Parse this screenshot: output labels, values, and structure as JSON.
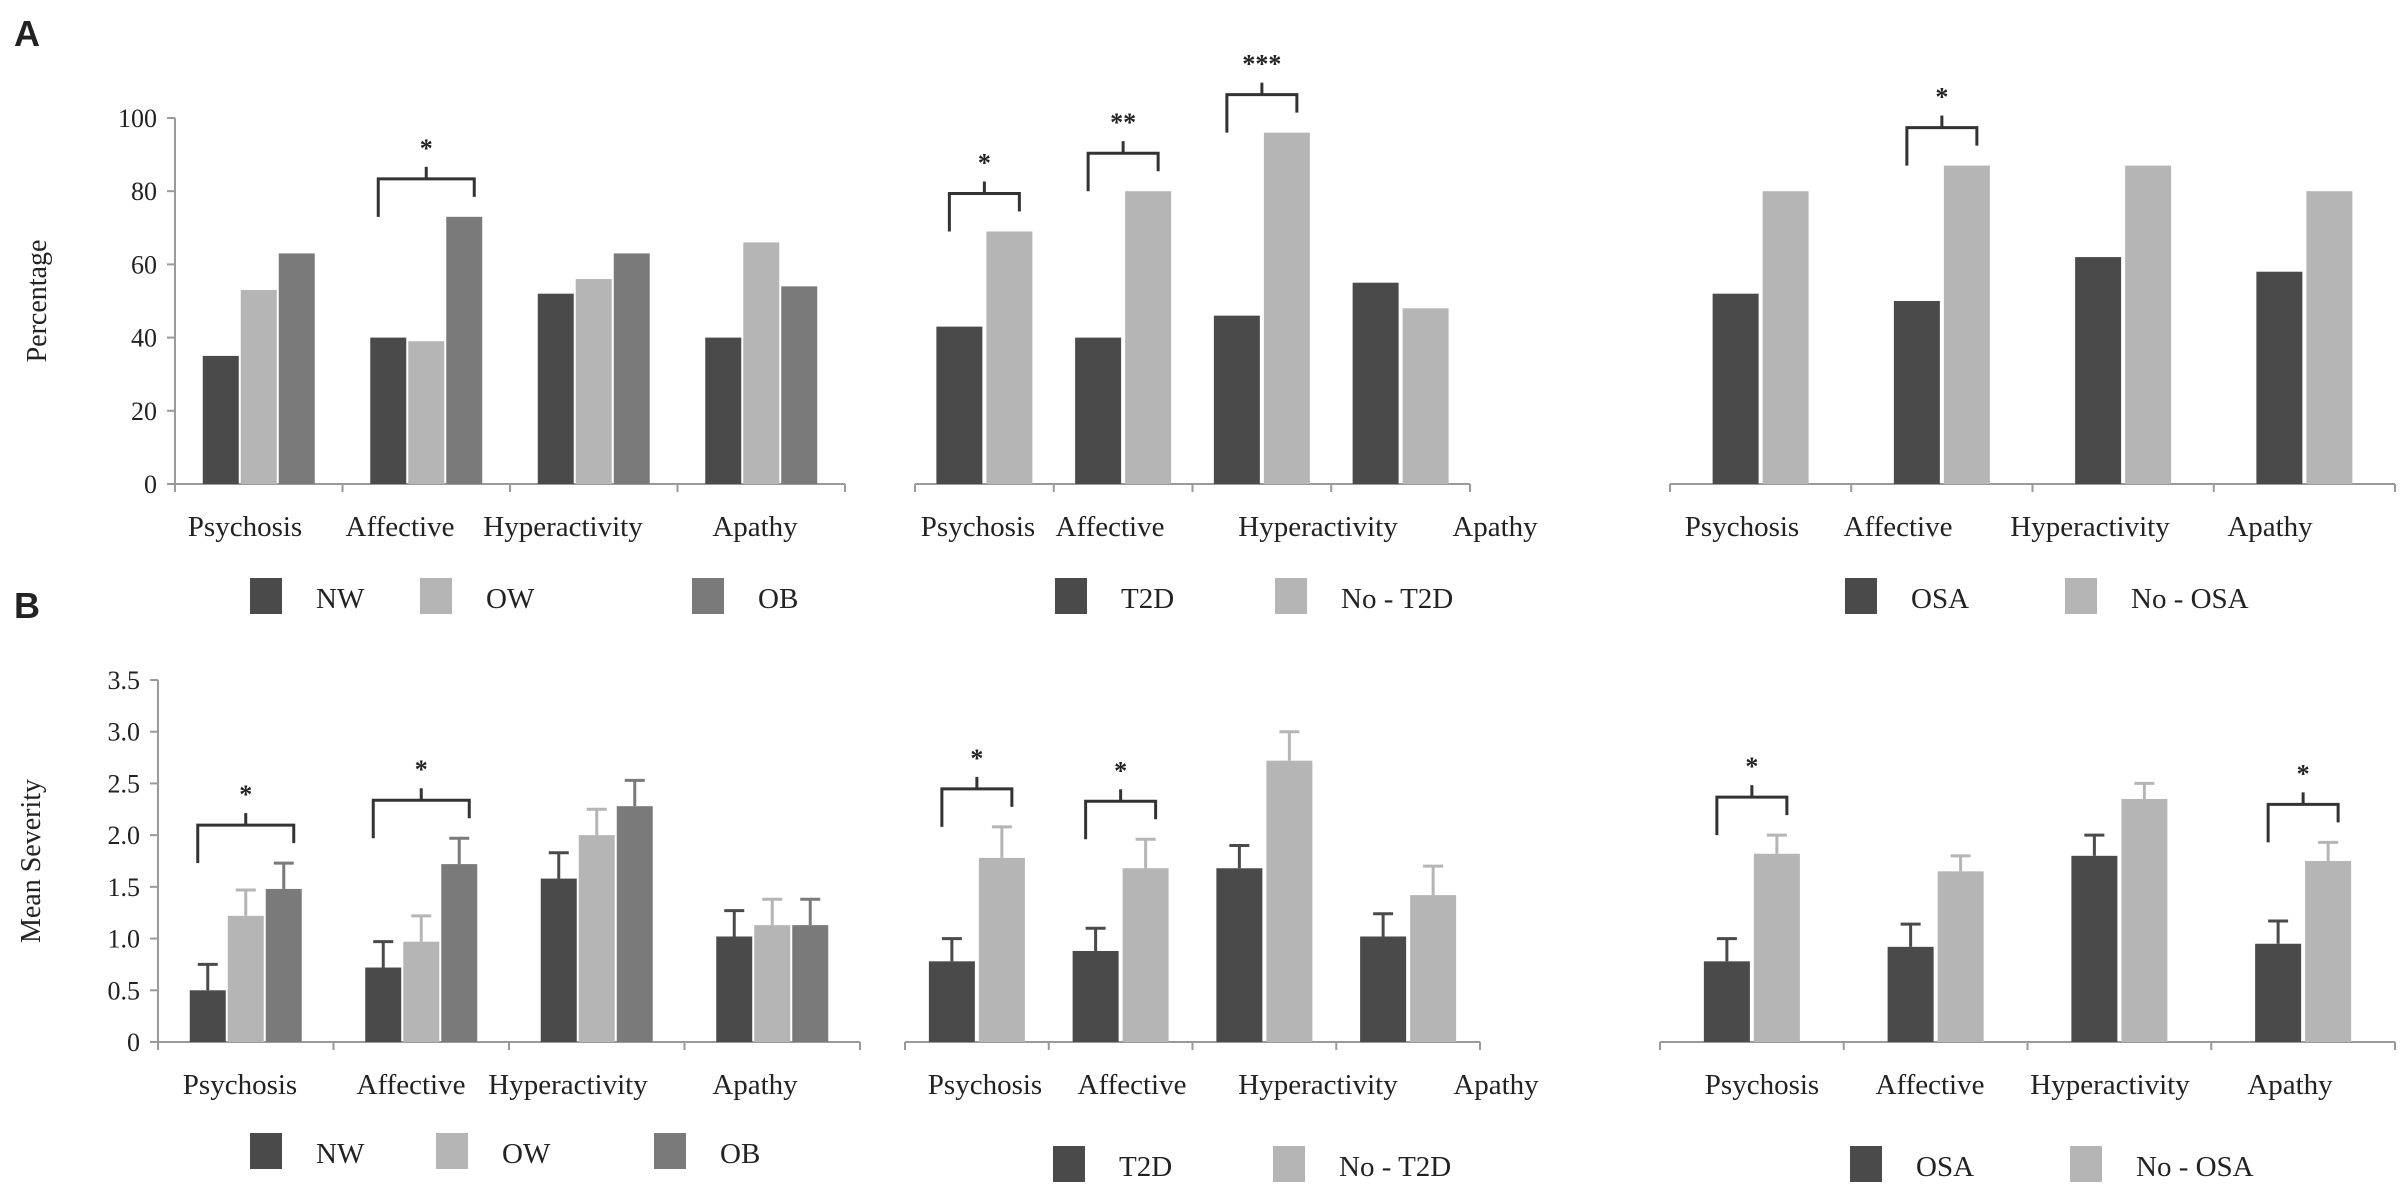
{
  "figure": {
    "panel_labels": [
      "A",
      "B"
    ]
  },
  "colors": {
    "NW": "#4a4a4a",
    "OW": "#b5b5b5",
    "OB": "#7a7a7a",
    "T2D": "#4a4a4a",
    "No - T2D": "#b5b5b5",
    "OSA": "#4a4a4a",
    "No - OSA": "#b5b5b5",
    "axis": "#9a9a9a"
  },
  "chart_data": [
    {
      "id": "A1",
      "type": "bar",
      "row": "A",
      "categories": [
        "Psychosis",
        "Affective",
        "Hyperactivity",
        "Apathy"
      ],
      "series": [
        {
          "name": "NW",
          "values": [
            35,
            40,
            52,
            40
          ]
        },
        {
          "name": "OW",
          "values": [
            53,
            39,
            56,
            66
          ]
        },
        {
          "name": "OB",
          "values": [
            63,
            73,
            63,
            54
          ]
        }
      ],
      "ylabel": "Percentage",
      "ylim": [
        0,
        100
      ],
      "yticks": [
        0,
        20,
        40,
        60,
        80,
        100
      ],
      "ytick_labels": [
        "0",
        "20",
        "40",
        "60",
        "80",
        "100"
      ],
      "significance": [
        {
          "category": "Affective",
          "from": "NW",
          "to": "OB",
          "label": "*"
        }
      ]
    },
    {
      "id": "A2",
      "type": "bar",
      "row": "A",
      "categories": [
        "Psychosis",
        "Affective",
        "Hyperactivity",
        "Apathy"
      ],
      "series": [
        {
          "name": "T2D",
          "values": [
            43,
            40,
            46,
            55
          ]
        },
        {
          "name": "No - T2D",
          "values": [
            69,
            80,
            96,
            48
          ]
        }
      ],
      "ylim": [
        0,
        100
      ],
      "significance": [
        {
          "category": "Psychosis",
          "from": "T2D",
          "to": "No - T2D",
          "label": "*"
        },
        {
          "category": "Affective",
          "from": "T2D",
          "to": "No - T2D",
          "label": "**"
        },
        {
          "category": "Hyperactivity",
          "from": "T2D",
          "to": "No - T2D",
          "label": "***"
        }
      ]
    },
    {
      "id": "A3",
      "type": "bar",
      "row": "A",
      "categories": [
        "Psychosis",
        "Affective",
        "Hyperactivity",
        "Apathy"
      ],
      "series": [
        {
          "name": "OSA",
          "values": [
            52,
            50,
            62,
            58
          ]
        },
        {
          "name": "No - OSA",
          "values": [
            80,
            87,
            87,
            80
          ]
        }
      ],
      "ylim": [
        0,
        100
      ],
      "significance": [
        {
          "category": "Affective",
          "from": "OSA",
          "to": "No - OSA",
          "label": "*"
        }
      ]
    },
    {
      "id": "B1",
      "type": "bar",
      "row": "B",
      "categories": [
        "Psychosis",
        "Affective",
        "Hyperactivity",
        "Apathy"
      ],
      "series": [
        {
          "name": "NW",
          "values": [
            0.5,
            0.72,
            1.58,
            1.02
          ],
          "errors": [
            0.25,
            0.25,
            0.25,
            0.25
          ]
        },
        {
          "name": "OW",
          "values": [
            1.22,
            0.97,
            2.0,
            1.13
          ],
          "errors": [
            0.25,
            0.25,
            0.25,
            0.25
          ]
        },
        {
          "name": "OB",
          "values": [
            1.48,
            1.72,
            2.28,
            1.13
          ],
          "errors": [
            0.25,
            0.25,
            0.25,
            0.25
          ]
        }
      ],
      "ylabel": "Mean Severity",
      "ylim": [
        0,
        3.5
      ],
      "yticks": [
        0,
        0.5,
        1,
        1.5,
        2,
        2.5,
        3,
        3.5
      ],
      "ytick_labels": [
        "0",
        "0.5",
        "1.0",
        "1.5",
        "2.0",
        "2.5",
        "3.0",
        "3.5"
      ],
      "significance": [
        {
          "category": "Psychosis",
          "from": "NW",
          "to": "OB",
          "label": "*"
        },
        {
          "category": "Affective",
          "from": "NW",
          "to": "OB",
          "label": "*"
        }
      ]
    },
    {
      "id": "B2",
      "type": "bar",
      "row": "B",
      "categories": [
        "Psychosis",
        "Affective",
        "Hyperactivity",
        "Apathy"
      ],
      "series": [
        {
          "name": "T2D",
          "values": [
            0.78,
            0.88,
            1.68,
            1.02
          ],
          "errors": [
            0.22,
            0.22,
            0.22,
            0.22
          ]
        },
        {
          "name": "No - T2D",
          "values": [
            1.78,
            1.68,
            2.72,
            1.42
          ],
          "errors": [
            0.3,
            0.28,
            0.28,
            0.28
          ]
        }
      ],
      "ylim": [
        0,
        3.5
      ],
      "significance": [
        {
          "category": "Psychosis",
          "from": "T2D",
          "to": "No - T2D",
          "label": "*"
        },
        {
          "category": "Affective",
          "from": "T2D",
          "to": "No - T2D",
          "label": "*"
        }
      ]
    },
    {
      "id": "B3",
      "type": "bar",
      "row": "B",
      "categories": [
        "Psychosis",
        "Affective",
        "Hyperactivity",
        "Apathy"
      ],
      "series": [
        {
          "name": "OSA",
          "values": [
            0.78,
            0.92,
            1.8,
            0.95
          ],
          "errors": [
            0.22,
            0.22,
            0.2,
            0.22
          ]
        },
        {
          "name": "No - OSA",
          "values": [
            1.82,
            1.65,
            2.35,
            1.75
          ],
          "errors": [
            0.18,
            0.15,
            0.15,
            0.18
          ]
        }
      ],
      "ylim": [
        0,
        3.5
      ],
      "significance": [
        {
          "category": "Psychosis",
          "from": "OSA",
          "to": "No - OSA",
          "label": "*"
        },
        {
          "category": "Apathy",
          "from": "OSA",
          "to": "No - OSA",
          "label": "*"
        }
      ]
    }
  ]
}
